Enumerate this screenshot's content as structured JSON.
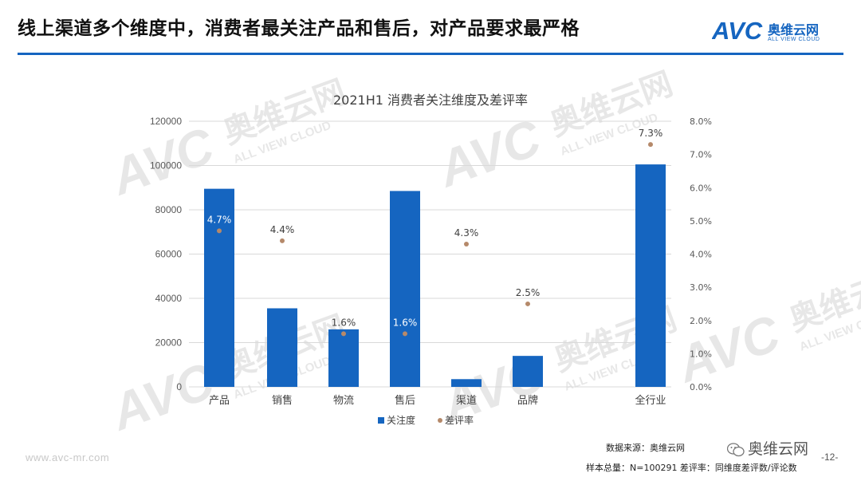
{
  "slide": {
    "title": "线上渠道多个维度中，消费者最关注产品和售后，对产品要求最严格"
  },
  "logo": {
    "mark_text": "AVC",
    "cn_name": "奥维云网",
    "en_name": "ALL VIEW CLOUD"
  },
  "watermark": {
    "mark_text": "AVC",
    "cn_name": "奥维云网",
    "en_name": "ALL VIEW CLOUD"
  },
  "footer": {
    "url": "www.avc-mr.com",
    "source": "数据来源：奥维云网",
    "sample": "样本总量：N=100291 差评率：同维度差评数/评论数",
    "wechat": "奥维云网",
    "page": "-12-"
  },
  "colors": {
    "accent": "#1565c0",
    "bar": "#1565c0",
    "dot": "#b5896a",
    "grid": "#d9d9d9",
    "axis_text": "#595959"
  },
  "chart_data": {
    "type": "bar",
    "title": "2021H1 消费者关注维度及差评率",
    "categories": [
      "产品",
      "销售",
      "物流",
      "售后",
      "渠道",
      "品牌",
      "全行业"
    ],
    "series": [
      {
        "name": "关注度",
        "type": "bar",
        "axis": "left",
        "values": [
          89500,
          35500,
          26000,
          88500,
          3500,
          14000,
          100500
        ]
      },
      {
        "name": "差评率",
        "type": "scatter",
        "axis": "right",
        "values": [
          4.7,
          4.4,
          1.6,
          1.6,
          4.3,
          2.5,
          7.3
        ],
        "labels": [
          "4.7%",
          "4.4%",
          "1.6%",
          "1.6%",
          "4.3%",
          "2.5%",
          "7.3%"
        ]
      }
    ],
    "y_left": {
      "min": 0,
      "max": 120000,
      "ticks": [
        "0",
        "20000",
        "40000",
        "60000",
        "80000",
        "100000",
        "120000"
      ]
    },
    "y_right": {
      "min": 0,
      "max": 8,
      "ticks": [
        "0.0%",
        "1.0%",
        "2.0%",
        "3.0%",
        "4.0%",
        "5.0%",
        "6.0%",
        "7.0%",
        "8.0%"
      ]
    },
    "grid": true,
    "legend_position": "bottom"
  }
}
